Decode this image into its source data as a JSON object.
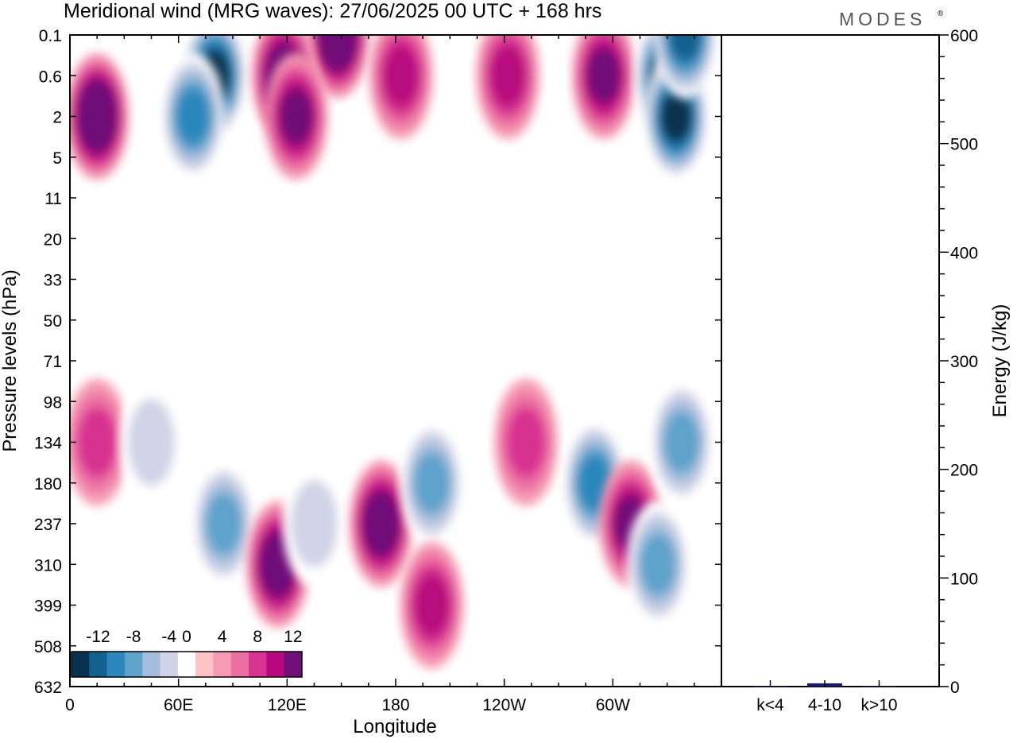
{
  "header": {
    "title": "Meridional wind (MRG waves):  27/06/2025  00 UTC  + 168 hrs",
    "brand": "MODES",
    "brand_mark": "®"
  },
  "chart_data": [
    {
      "type": "heatmap",
      "title": "Meridional wind (MRG waves):  27/06/2025  00 UTC  + 168 hrs",
      "xlabel": "Longitude",
      "ylabel": "Pressure levels (hPa)",
      "xticks": [
        "0",
        "60E",
        "120E",
        "180",
        "120W",
        "60W"
      ],
      "xtick_lon": [
        0,
        60,
        120,
        180,
        240,
        300
      ],
      "xlim": [
        0,
        360
      ],
      "yticks": [
        "0.1",
        "0.6",
        "2",
        "5",
        "11",
        "20",
        "33",
        "50",
        "71",
        "98",
        "134",
        "180",
        "237",
        "310",
        "399",
        "508",
        "632"
      ],
      "colorbar": {
        "labels": [
          "-12",
          "-8",
          "-4",
          "0",
          "4",
          "8",
          "12"
        ],
        "levels": [
          -14,
          -12,
          -10,
          -8,
          -6,
          -4,
          -2,
          2,
          4,
          6,
          8,
          10,
          12,
          14
        ],
        "colors": [
          "#0b3150",
          "#13618f",
          "#2c87bc",
          "#5fa3cb",
          "#a5bddb",
          "#d0d3e6",
          "#ffffff",
          "#fbc3c3",
          "#f59bb4",
          "#eb6fa3",
          "#d83391",
          "#b80a7e",
          "#6f0f78"
        ]
      },
      "features": [
        {
          "lon": 15,
          "level": "2",
          "value": 13
        },
        {
          "lon": 80,
          "level": "0.6",
          "value": -13
        },
        {
          "lon": 68,
          "level": "2",
          "value": -10
        },
        {
          "lon": 148,
          "level": "0.1",
          "value": 14
        },
        {
          "lon": 118,
          "level": "0.6",
          "value": 11
        },
        {
          "lon": 125,
          "level": "2",
          "value": 10
        },
        {
          "lon": 183,
          "level": "0.6",
          "value": 8
        },
        {
          "lon": 242,
          "level": "0.6",
          "value": 7
        },
        {
          "lon": 295,
          "level": "0.6",
          "value": 9
        },
        {
          "lon": 330,
          "level": "0.6",
          "value": -14
        },
        {
          "lon": 335,
          "level": "2",
          "value": -13
        },
        {
          "lon": 340,
          "level": "0.1",
          "value": -12
        },
        {
          "lon": 15,
          "level": "134",
          "value": 6
        },
        {
          "lon": 45,
          "level": "134",
          "value": -4
        },
        {
          "lon": 85,
          "level": "237",
          "value": -7
        },
        {
          "lon": 115,
          "level": "310",
          "value": 12
        },
        {
          "lon": 135,
          "level": "237",
          "value": -4
        },
        {
          "lon": 172,
          "level": "237",
          "value": 11
        },
        {
          "lon": 200,
          "level": "180",
          "value": -8
        },
        {
          "lon": 200,
          "level": "399",
          "value": 8
        },
        {
          "lon": 252,
          "level": "134",
          "value": 6
        },
        {
          "lon": 290,
          "level": "180",
          "value": -9
        },
        {
          "lon": 310,
          "level": "237",
          "value": 9
        },
        {
          "lon": 338,
          "level": "134",
          "value": -8
        },
        {
          "lon": 325,
          "level": "310",
          "value": -7
        }
      ]
    },
    {
      "type": "bar",
      "ylabel": "Energy (J/kg)",
      "categories": [
        "k<4",
        "4-10",
        "k>10"
      ],
      "values": [
        0.5,
        3,
        0.5
      ],
      "ylim": [
        0,
        600
      ],
      "yticks": [
        "0",
        "100",
        "200",
        "300",
        "400",
        "500",
        "600"
      ],
      "bar_color": "#1a1a66"
    }
  ]
}
